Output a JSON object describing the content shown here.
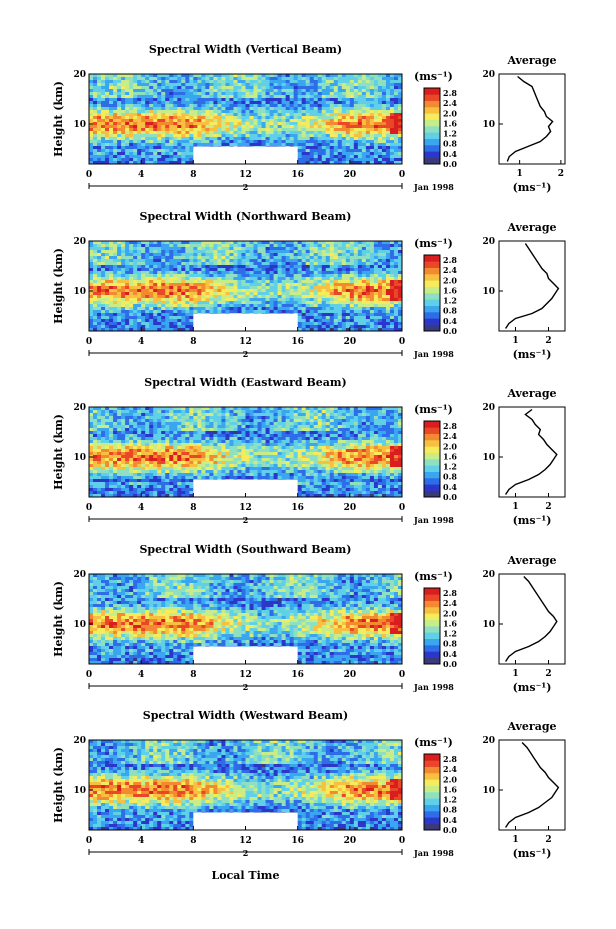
{
  "chart_data": [
    {
      "type": "heatmap",
      "title": "Spectral Width (Vertical Beam)",
      "ylabel": "Height (km)",
      "yticks": [
        "20",
        "10"
      ],
      "xticks": [
        "0",
        "4",
        "8",
        "12",
        "16",
        "20",
        "0"
      ],
      "date_marker": "2",
      "date_label": "Jan 1998",
      "xlim": [
        0,
        24
      ],
      "ylim": [
        2,
        20
      ],
      "colorbar": {
        "unit": "(ms⁻¹)",
        "ticks": [
          "2.8",
          "2.4",
          "2.0",
          "1.6",
          "1.2",
          "0.8",
          "0.4",
          "0.0"
        ],
        "range": [
          0,
          3.0
        ]
      },
      "average": {
        "title": "Average",
        "xlabel": "(ms⁻¹)",
        "xticks": [
          "1",
          "2"
        ],
        "xlim": [
          0.5,
          2.1
        ],
        "yticks": [
          "20",
          "10"
        ],
        "profile": [
          [
            0.7,
            2.5
          ],
          [
            0.75,
            3.5
          ],
          [
            0.9,
            4.5
          ],
          [
            1.2,
            5.5
          ],
          [
            1.5,
            6.5
          ],
          [
            1.65,
            7.5
          ],
          [
            1.75,
            8.5
          ],
          [
            1.7,
            9.5
          ],
          [
            1.8,
            10.5
          ],
          [
            1.65,
            11.5
          ],
          [
            1.6,
            12.5
          ],
          [
            1.5,
            13.5
          ],
          [
            1.45,
            14.5
          ],
          [
            1.4,
            15.5
          ],
          [
            1.35,
            16.5
          ],
          [
            1.3,
            17.5
          ],
          [
            1.1,
            18.5
          ],
          [
            0.95,
            19.5
          ]
        ]
      }
    },
    {
      "type": "heatmap",
      "title": "Spectral Width (Northward Beam)",
      "ylabel": "Height (km)",
      "yticks": [
        "20",
        "10"
      ],
      "xticks": [
        "0",
        "4",
        "8",
        "12",
        "16",
        "20",
        "0"
      ],
      "date_marker": "2",
      "date_label": "Jan 1998",
      "xlim": [
        0,
        24
      ],
      "ylim": [
        2,
        20
      ],
      "colorbar": {
        "unit": "(ms⁻¹)",
        "ticks": [
          "2.8",
          "2.4",
          "2.0",
          "1.6",
          "1.2",
          "0.8",
          "0.4",
          "0.0"
        ],
        "range": [
          0,
          3.0
        ]
      },
      "average": {
        "title": "Average",
        "xlabel": "(ms⁻¹)",
        "xticks": [
          "1",
          "2"
        ],
        "xlim": [
          0.5,
          2.5
        ],
        "yticks": [
          "20",
          "10"
        ],
        "profile": [
          [
            0.7,
            2.5
          ],
          [
            0.8,
            3.5
          ],
          [
            1.0,
            4.5
          ],
          [
            1.5,
            5.5
          ],
          [
            1.8,
            6.5
          ],
          [
            1.95,
            7.5
          ],
          [
            2.1,
            8.5
          ],
          [
            2.2,
            9.5
          ],
          [
            2.3,
            10.5
          ],
          [
            2.15,
            11.5
          ],
          [
            2.0,
            12.5
          ],
          [
            1.95,
            13.5
          ],
          [
            1.8,
            14.5
          ],
          [
            1.7,
            15.5
          ],
          [
            1.6,
            16.5
          ],
          [
            1.5,
            17.5
          ],
          [
            1.4,
            18.5
          ],
          [
            1.3,
            19.5
          ]
        ]
      }
    },
    {
      "type": "heatmap",
      "title": "Spectral Width (Eastward Beam)",
      "ylabel": "Height (km)",
      "yticks": [
        "20",
        "10"
      ],
      "xticks": [
        "0",
        "4",
        "8",
        "12",
        "16",
        "20",
        "0"
      ],
      "date_marker": "2",
      "date_label": "Jan 1998",
      "xlim": [
        0,
        24
      ],
      "ylim": [
        2,
        20
      ],
      "colorbar": {
        "unit": "(ms⁻¹)",
        "ticks": [
          "2.8",
          "2.4",
          "2.0",
          "1.6",
          "1.2",
          "0.8",
          "0.4",
          "0.0"
        ],
        "range": [
          0,
          3.0
        ]
      },
      "average": {
        "title": "Average",
        "xlabel": "(ms⁻¹)",
        "xticks": [
          "1",
          "2"
        ],
        "xlim": [
          0.5,
          2.5
        ],
        "yticks": [
          "20",
          "10"
        ],
        "profile": [
          [
            0.7,
            2.5
          ],
          [
            0.8,
            3.5
          ],
          [
            1.0,
            4.5
          ],
          [
            1.4,
            5.5
          ],
          [
            1.7,
            6.5
          ],
          [
            1.9,
            7.5
          ],
          [
            2.05,
            8.5
          ],
          [
            2.15,
            9.5
          ],
          [
            2.25,
            10.5
          ],
          [
            2.1,
            11.5
          ],
          [
            1.95,
            12.5
          ],
          [
            1.85,
            13.5
          ],
          [
            1.7,
            14.5
          ],
          [
            1.75,
            15.5
          ],
          [
            1.6,
            16.5
          ],
          [
            1.5,
            17.5
          ],
          [
            1.3,
            18.5
          ],
          [
            1.5,
            19.5
          ]
        ]
      }
    },
    {
      "type": "heatmap",
      "title": "Spectral Width (Southward Beam)",
      "ylabel": "Height (km)",
      "yticks": [
        "20",
        "10"
      ],
      "xticks": [
        "0",
        "4",
        "8",
        "12",
        "16",
        "20",
        "0"
      ],
      "date_marker": "2",
      "date_label": "Jan 1998",
      "xlim": [
        0,
        24
      ],
      "ylim": [
        2,
        20
      ],
      "colorbar": {
        "unit": "(ms⁻¹)",
        "ticks": [
          "2.8",
          "2.4",
          "2.0",
          "1.6",
          "1.2",
          "0.8",
          "0.4",
          "0.0"
        ],
        "range": [
          0,
          3.0
        ]
      },
      "average": {
        "title": "Average",
        "xlabel": "(ms⁻¹)",
        "xticks": [
          "1",
          "2"
        ],
        "xlim": [
          0.5,
          2.5
        ],
        "yticks": [
          "20",
          "10"
        ],
        "profile": [
          [
            0.7,
            2.5
          ],
          [
            0.8,
            3.5
          ],
          [
            1.0,
            4.5
          ],
          [
            1.4,
            5.5
          ],
          [
            1.7,
            6.5
          ],
          [
            1.9,
            7.5
          ],
          [
            2.05,
            8.5
          ],
          [
            2.15,
            9.5
          ],
          [
            2.25,
            10.5
          ],
          [
            2.15,
            11.5
          ],
          [
            2.0,
            12.5
          ],
          [
            1.9,
            13.5
          ],
          [
            1.8,
            14.5
          ],
          [
            1.7,
            15.5
          ],
          [
            1.6,
            16.5
          ],
          [
            1.5,
            17.5
          ],
          [
            1.4,
            18.5
          ],
          [
            1.25,
            19.5
          ]
        ]
      }
    },
    {
      "type": "heatmap",
      "title": "Spectral Width (Westward Beam)",
      "ylabel": "Height (km)",
      "yticks": [
        "20",
        "10"
      ],
      "xticks": [
        "0",
        "4",
        "8",
        "12",
        "16",
        "20",
        "0"
      ],
      "date_marker": "2",
      "date_label": "Jan 1998",
      "xlim": [
        0,
        24
      ],
      "ylim": [
        2,
        20
      ],
      "colorbar": {
        "unit": "(ms⁻¹)",
        "ticks": [
          "2.8",
          "2.4",
          "2.0",
          "1.6",
          "1.2",
          "0.8",
          "0.4",
          "0.0"
        ],
        "range": [
          0,
          3.0
        ]
      },
      "average": {
        "title": "Average",
        "xlabel": "(ms⁻¹)",
        "xticks": [
          "1",
          "2"
        ],
        "xlim": [
          0.5,
          2.5
        ],
        "yticks": [
          "20",
          "10"
        ],
        "profile": [
          [
            0.7,
            2.5
          ],
          [
            0.8,
            3.5
          ],
          [
            1.0,
            4.5
          ],
          [
            1.4,
            5.5
          ],
          [
            1.7,
            6.5
          ],
          [
            1.9,
            7.5
          ],
          [
            2.1,
            8.5
          ],
          [
            2.2,
            9.5
          ],
          [
            2.3,
            10.5
          ],
          [
            2.15,
            11.5
          ],
          [
            2.0,
            12.5
          ],
          [
            1.9,
            13.5
          ],
          [
            1.75,
            14.5
          ],
          [
            1.65,
            15.5
          ],
          [
            1.55,
            16.5
          ],
          [
            1.45,
            17.5
          ],
          [
            1.35,
            18.5
          ],
          [
            1.2,
            19.5
          ]
        ]
      }
    }
  ],
  "xlabel": "Local Time",
  "colors": [
    "#3a3a7a",
    "#2a37c8",
    "#2f6ce8",
    "#3aa6f0",
    "#5fd0e8",
    "#8fe0c0",
    "#c8ec88",
    "#f4ec5c",
    "#f8c040",
    "#f48a30",
    "#ea4628",
    "#d81e1e"
  ]
}
